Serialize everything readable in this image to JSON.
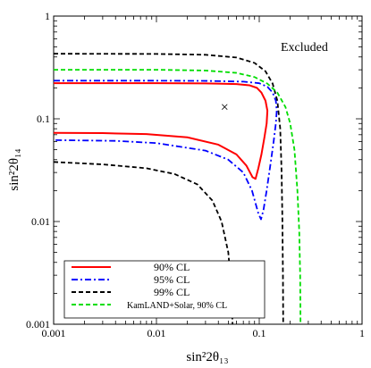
{
  "chart_data": {
    "type": "line",
    "xlabel": "sin²2θ₁₃",
    "ylabel": "sin²2θ₁₄",
    "xscale": "log",
    "yscale": "log",
    "xlim": [
      0.001,
      1
    ],
    "ylim": [
      0.001,
      1
    ],
    "grid": false,
    "legend_position": "bottom-left",
    "x_ticks": [
      {
        "value": 0.001,
        "label": "0.001"
      },
      {
        "value": 0.01,
        "label": "0.01"
      },
      {
        "value": 0.1,
        "label": "0.1"
      },
      {
        "value": 1,
        "label": "1"
      }
    ],
    "y_ticks": [
      {
        "value": 0.001,
        "label": "0.001"
      },
      {
        "value": 0.01,
        "label": "0.01"
      },
      {
        "value": 0.1,
        "label": "0.1"
      },
      {
        "value": 1,
        "label": "1"
      }
    ],
    "annotations": [
      {
        "text": "Excluded",
        "x": 0.3,
        "y": 0.6
      },
      {
        "text": "×",
        "x": 0.046,
        "y": 0.13
      }
    ],
    "series": [
      {
        "name": "90% CL",
        "color": "#ff0000",
        "dash": "solid",
        "segments": [
          [
            [
              0.001,
              0.222
            ],
            [
              0.01,
              0.222
            ],
            [
              0.03,
              0.221
            ],
            [
              0.06,
              0.218
            ],
            [
              0.08,
              0.212
            ],
            [
              0.095,
              0.2
            ],
            [
              0.105,
              0.18
            ],
            [
              0.115,
              0.15
            ],
            [
              0.12,
              0.12
            ],
            [
              0.118,
              0.09
            ],
            [
              0.112,
              0.065
            ],
            [
              0.105,
              0.045
            ],
            [
              0.098,
              0.033
            ],
            [
              0.092,
              0.026
            ],
            [
              0.086,
              0.027
            ],
            [
              0.075,
              0.035
            ],
            [
              0.06,
              0.045
            ],
            [
              0.04,
              0.056
            ],
            [
              0.02,
              0.066
            ],
            [
              0.008,
              0.071
            ],
            [
              0.003,
              0.0725
            ],
            [
              0.001,
              0.073
            ]
          ]
        ]
      },
      {
        "name": "95% CL",
        "color": "#0000ff",
        "dash": "dashdot",
        "segments": [
          [
            [
              0.001,
              0.235
            ],
            [
              0.01,
              0.235
            ],
            [
              0.03,
              0.234
            ],
            [
              0.07,
              0.23
            ],
            [
              0.1,
              0.222
            ],
            [
              0.12,
              0.205
            ],
            [
              0.135,
              0.18
            ],
            [
              0.145,
              0.15
            ],
            [
              0.148,
              0.12
            ],
            [
              0.145,
              0.09
            ],
            [
              0.138,
              0.06
            ],
            [
              0.128,
              0.035
            ],
            [
              0.118,
              0.02
            ],
            [
              0.11,
              0.013
            ],
            [
              0.104,
              0.0105
            ],
            [
              0.098,
              0.012
            ],
            [
              0.085,
              0.02
            ],
            [
              0.07,
              0.03
            ],
            [
              0.05,
              0.04
            ],
            [
              0.03,
              0.049
            ],
            [
              0.01,
              0.058
            ],
            [
              0.004,
              0.061
            ],
            [
              0.001,
              0.062
            ]
          ]
        ]
      },
      {
        "name": "99% CL",
        "color": "#000000",
        "dash": "dashed",
        "segments": [
          [
            [
              0.001,
              0.43
            ],
            [
              0.01,
              0.428
            ],
            [
              0.03,
              0.42
            ],
            [
              0.06,
              0.395
            ],
            [
              0.09,
              0.35
            ],
            [
              0.115,
              0.29
            ],
            [
              0.135,
              0.22
            ],
            [
              0.15,
              0.15
            ],
            [
              0.16,
              0.08
            ],
            [
              0.165,
              0.03
            ],
            [
              0.168,
              0.01
            ],
            [
              0.17,
              0.003
            ],
            [
              0.171,
              0.001
            ]
          ],
          [
            [
              0.001,
              0.038
            ],
            [
              0.003,
              0.036
            ],
            [
              0.008,
              0.033
            ],
            [
              0.015,
              0.029
            ],
            [
              0.025,
              0.023
            ],
            [
              0.035,
              0.016
            ],
            [
              0.043,
              0.01
            ],
            [
              0.05,
              0.005
            ],
            [
              0.053,
              0.0025
            ],
            [
              0.055,
              0.001
            ]
          ]
        ]
      },
      {
        "name": "KamLAND+Solar, 90% CL",
        "color": "#00dd00",
        "dash": "dashed",
        "segments": [
          [
            [
              0.001,
              0.3
            ],
            [
              0.01,
              0.3
            ],
            [
              0.03,
              0.295
            ],
            [
              0.06,
              0.28
            ],
            [
              0.09,
              0.255
            ],
            [
              0.12,
              0.22
            ],
            [
              0.15,
              0.18
            ],
            [
              0.18,
              0.13
            ],
            [
              0.2,
              0.09
            ],
            [
              0.22,
              0.05
            ],
            [
              0.235,
              0.02
            ],
            [
              0.245,
              0.008
            ],
            [
              0.25,
              0.003
            ],
            [
              0.252,
              0.001
            ]
          ]
        ]
      }
    ]
  }
}
